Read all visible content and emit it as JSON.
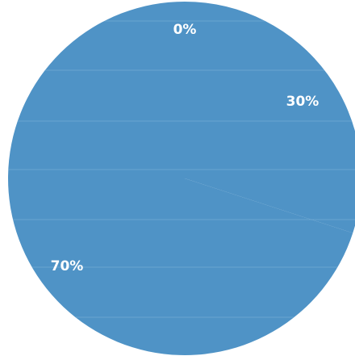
{
  "chart_data": {
    "type": "pie",
    "title": "",
    "slices": [
      {
        "label": "0%",
        "value": 0
      },
      {
        "label": "30%",
        "value": 30
      },
      {
        "label": "70%",
        "value": 70
      }
    ],
    "colors": {
      "pie_fill": "#4f93c6",
      "scan_line": "#7fb2d8",
      "label_text": "#ffffff",
      "background": "#ffffff"
    }
  }
}
